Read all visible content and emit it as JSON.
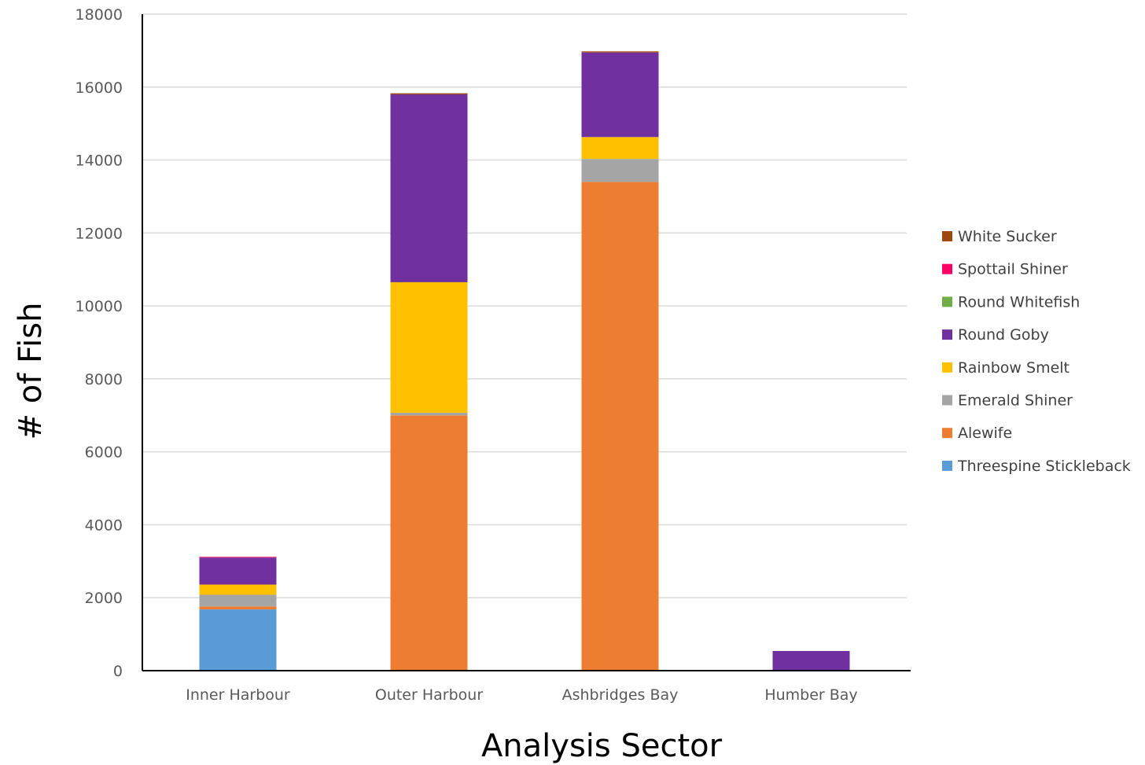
{
  "chart_data": {
    "type": "bar",
    "stacked": true,
    "title": "",
    "xlabel": "Analysis Sector",
    "ylabel": "# of Fish",
    "ylim": [
      0,
      18000
    ],
    "yticks": [
      0,
      2000,
      4000,
      6000,
      8000,
      10000,
      12000,
      14000,
      16000,
      18000
    ],
    "grid": true,
    "legend_position": "right",
    "categories": [
      "Inner Harbour",
      "Outer Harbour",
      "Ashbridges Bay",
      "Humber Bay"
    ],
    "series": [
      {
        "name": "Threespine Stickleback",
        "color": "#5B9BD5",
        "values": [
          1680,
          0,
          0,
          0
        ]
      },
      {
        "name": "Alewife",
        "color": "#ED7D31",
        "values": [
          80,
          7000,
          13400,
          0
        ]
      },
      {
        "name": "Emerald Shiner",
        "color": "#A5A5A5",
        "values": [
          320,
          70,
          630,
          0
        ]
      },
      {
        "name": "Rainbow  Smelt",
        "color": "#FFC000",
        "values": [
          280,
          3580,
          600,
          20
        ]
      },
      {
        "name": "Round Goby",
        "color": "#7030A0",
        "values": [
          740,
          5150,
          2320,
          520
        ]
      },
      {
        "name": "Round Whitefish",
        "color": "#70AD47",
        "values": [
          0,
          0,
          0,
          0
        ]
      },
      {
        "name": "Spottail Shiner",
        "color": "#FF0066",
        "values": [
          20,
          0,
          0,
          0
        ]
      },
      {
        "name": "White Sucker",
        "color": "#9E480E",
        "values": [
          0,
          30,
          30,
          0
        ]
      }
    ]
  }
}
